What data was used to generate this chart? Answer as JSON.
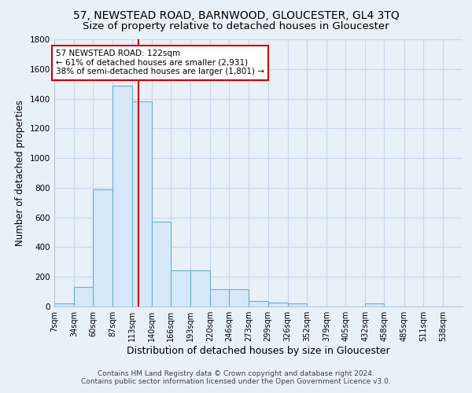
{
  "title": "57, NEWSTEAD ROAD, BARNWOOD, GLOUCESTER, GL4 3TQ",
  "subtitle": "Size of property relative to detached houses in Gloucester",
  "xlabel": "Distribution of detached houses by size in Gloucester",
  "ylabel": "Number of detached properties",
  "bar_edges": [
    7,
    34,
    60,
    87,
    113,
    140,
    166,
    193,
    220,
    246,
    273,
    299,
    326,
    352,
    379,
    405,
    432,
    458,
    485,
    511,
    538
  ],
  "bar_heights": [
    20,
    135,
    790,
    1490,
    1380,
    570,
    245,
    245,
    115,
    115,
    35,
    25,
    20,
    0,
    0,
    0,
    20,
    0,
    0,
    0,
    0
  ],
  "bar_color": "#d6e8f7",
  "bar_edgecolor": "#6aaed6",
  "grid_color": "#c8d8ec",
  "bg_color": "#e8f0f8",
  "vline_x": 122,
  "vline_color": "#cc0000",
  "annotation_text": "57 NEWSTEAD ROAD: 122sqm\n← 61% of detached houses are smaller (2,931)\n38% of semi-detached houses are larger (1,801) →",
  "annotation_box_color": "#cc0000",
  "annotation_bg": "#ffffff",
  "ylim": [
    0,
    1800
  ],
  "yticks": [
    0,
    200,
    400,
    600,
    800,
    1000,
    1200,
    1400,
    1600,
    1800
  ],
  "footnote": "Contains HM Land Registry data © Crown copyright and database right 2024.\nContains public sector information licensed under the Open Government Licence v3.0.",
  "title_fontsize": 10,
  "subtitle_fontsize": 9.5,
  "xlabel_fontsize": 9,
  "ylabel_fontsize": 8.5,
  "tick_fontsize": 7.5,
  "annot_fontsize": 7.5,
  "footnote_fontsize": 6.5
}
